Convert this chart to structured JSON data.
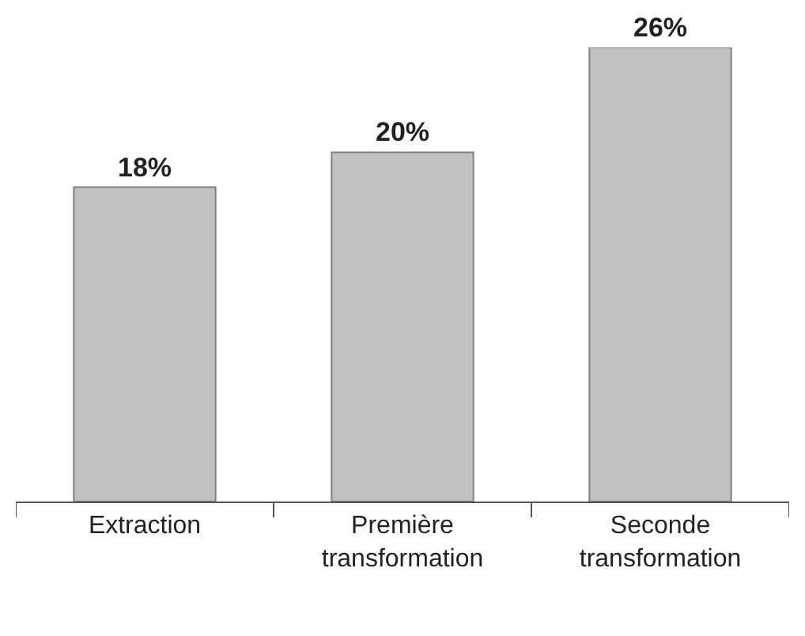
{
  "chart_data": {
    "type": "bar",
    "categories": [
      "Extraction",
      "Première\ntransformation",
      "Seconde\ntransformation"
    ],
    "values": [
      18,
      20,
      26
    ],
    "value_labels": [
      "18%",
      "20%",
      "26%"
    ],
    "color": "#c0c0c0"
  }
}
